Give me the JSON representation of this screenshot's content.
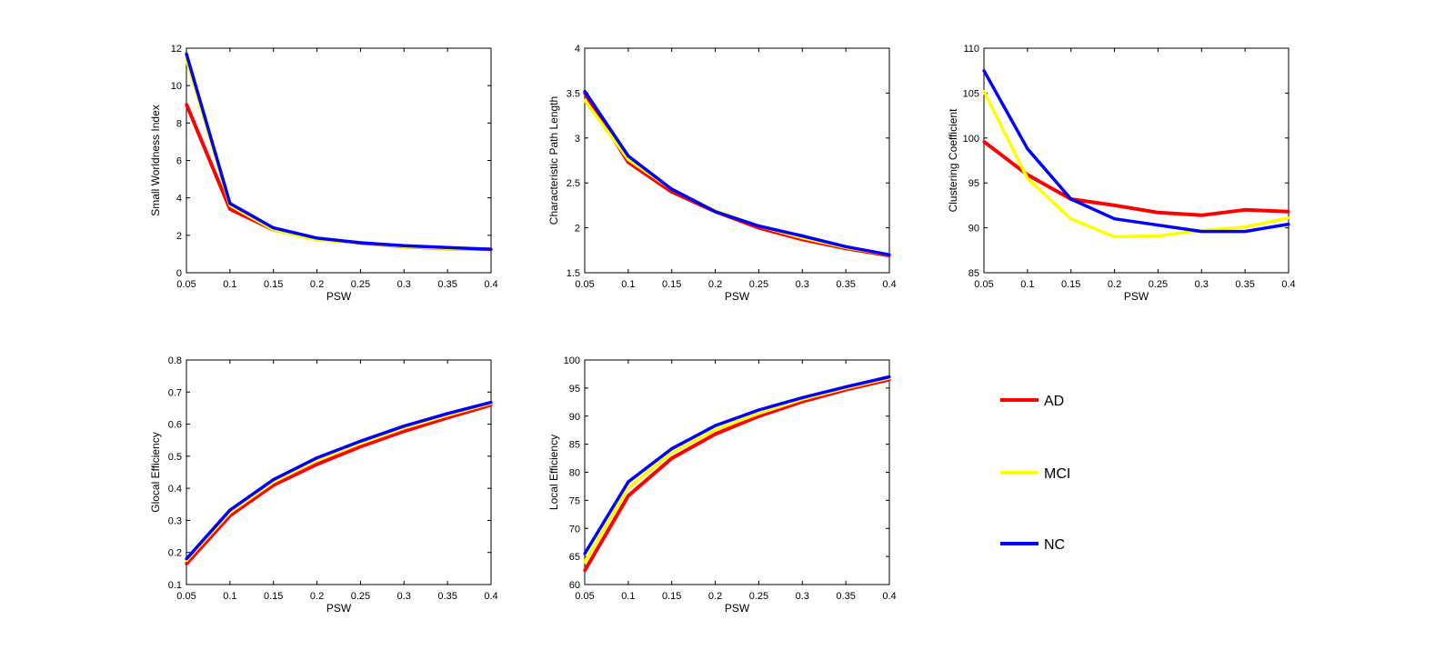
{
  "series_colors": {
    "AD": "#ff0000",
    "MCI": "#ffff00",
    "NC": "#0000ff"
  },
  "legend": [
    "AD",
    "MCI",
    "NC"
  ],
  "chart_data": [
    {
      "type": "line",
      "id": "small-worldness",
      "xlabel": "PSW",
      "ylabel": "Small Worldness Index",
      "x": [
        0.05,
        0.1,
        0.15,
        0.2,
        0.25,
        0.3,
        0.35,
        0.4
      ],
      "xticks": [
        "0.05",
        "0.1",
        "0.15",
        "0.2",
        "0.25",
        "0.3",
        "0.35",
        "0.4"
      ],
      "ylim": [
        0,
        12
      ],
      "yticks": [
        "0",
        "2",
        "4",
        "6",
        "8",
        "10",
        "12"
      ],
      "series": [
        {
          "name": "AD",
          "values": [
            9.0,
            3.4,
            2.3,
            1.8,
            1.6,
            1.4,
            1.3,
            1.25
          ]
        },
        {
          "name": "MCI",
          "values": [
            11.4,
            3.6,
            2.3,
            1.75,
            1.6,
            1.4,
            1.3,
            1.25
          ]
        },
        {
          "name": "NC",
          "values": [
            11.7,
            3.7,
            2.4,
            1.85,
            1.6,
            1.45,
            1.35,
            1.25
          ]
        }
      ]
    },
    {
      "type": "line",
      "id": "path-length",
      "xlabel": "PSW",
      "ylabel": "Characteristic Path Length",
      "x": [
        0.05,
        0.1,
        0.15,
        0.2,
        0.25,
        0.3,
        0.35,
        0.4
      ],
      "xticks": [
        "0.05",
        "0.1",
        "0.15",
        "0.2",
        "0.25",
        "0.3",
        "0.35",
        "0.4"
      ],
      "ylim": [
        1.5,
        4
      ],
      "yticks": [
        "1.5",
        "2",
        "2.5",
        "3",
        "3.5",
        "4"
      ],
      "series": [
        {
          "name": "AD",
          "values": [
            3.5,
            2.73,
            2.4,
            2.18,
            2.0,
            1.87,
            1.77,
            1.69
          ]
        },
        {
          "name": "MCI",
          "values": [
            3.42,
            2.76,
            2.43,
            2.19,
            2.02,
            1.89,
            1.78,
            1.7
          ]
        },
        {
          "name": "NC",
          "values": [
            3.52,
            2.8,
            2.43,
            2.18,
            2.02,
            1.91,
            1.79,
            1.7
          ]
        }
      ]
    },
    {
      "type": "line",
      "id": "clustering",
      "xlabel": "PSW",
      "ylabel": "Clustering Coefficient",
      "x": [
        0.05,
        0.1,
        0.15,
        0.2,
        0.25,
        0.3,
        0.35,
        0.4
      ],
      "xticks": [
        "0.05",
        "0.1",
        "0.15",
        "0.2",
        "0.25",
        "0.3",
        "0.35",
        "0.4"
      ],
      "ylim": [
        85,
        110
      ],
      "yticks": [
        "85",
        "90",
        "95",
        "100",
        "105",
        "110"
      ],
      "series": [
        {
          "name": "AD",
          "values": [
            99.6,
            95.9,
            93.2,
            92.5,
            91.7,
            91.4,
            92.0,
            91.8
          ]
        },
        {
          "name": "MCI",
          "values": [
            105.2,
            95.5,
            91.0,
            89.0,
            89.1,
            89.7,
            90.1,
            91.1
          ]
        },
        {
          "name": "NC",
          "values": [
            107.5,
            98.8,
            93.2,
            91.0,
            90.3,
            89.6,
            89.6,
            90.4
          ]
        }
      ]
    },
    {
      "type": "line",
      "id": "global-efficiency",
      "xlabel": "PSW",
      "ylabel": "Glocal Efficiency",
      "x": [
        0.05,
        0.1,
        0.15,
        0.2,
        0.25,
        0.3,
        0.35,
        0.4
      ],
      "xticks": [
        "0.05",
        "0.1",
        "0.15",
        "0.2",
        "0.25",
        "0.3",
        "0.35",
        "0.4"
      ],
      "ylim": [
        0.1,
        0.8
      ],
      "yticks": [
        "0.1",
        "0.2",
        "0.3",
        "0.4",
        "0.5",
        "0.6",
        "0.7",
        "0.8"
      ],
      "series": [
        {
          "name": "AD",
          "values": [
            0.165,
            0.315,
            0.41,
            0.475,
            0.53,
            0.578,
            0.62,
            0.66
          ]
        },
        {
          "name": "MCI",
          "values": [
            0.175,
            0.325,
            0.42,
            0.487,
            0.54,
            0.588,
            0.628,
            0.665
          ]
        },
        {
          "name": "NC",
          "values": [
            0.18,
            0.332,
            0.427,
            0.495,
            0.547,
            0.594,
            0.633,
            0.668
          ]
        }
      ]
    },
    {
      "type": "line",
      "id": "local-efficiency",
      "xlabel": "PSW",
      "ylabel": "Local Efficiency",
      "x": [
        0.05,
        0.1,
        0.15,
        0.2,
        0.25,
        0.3,
        0.35,
        0.4
      ],
      "xticks": [
        "0.05",
        "0.1",
        "0.15",
        "0.2",
        "0.25",
        "0.3",
        "0.35",
        "0.4"
      ],
      "ylim": [
        60,
        100
      ],
      "yticks": [
        "60",
        "65",
        "70",
        "75",
        "80",
        "85",
        "90",
        "95",
        "100"
      ],
      "series": [
        {
          "name": "AD",
          "values": [
            62.5,
            75.8,
            82.5,
            86.8,
            90.0,
            92.6,
            94.7,
            96.5
          ]
        },
        {
          "name": "MCI",
          "values": [
            64.0,
            77.2,
            83.5,
            87.6,
            90.5,
            93.0,
            95.0,
            96.8
          ]
        },
        {
          "name": "NC",
          "values": [
            65.5,
            78.3,
            84.2,
            88.3,
            91.1,
            93.3,
            95.2,
            97.0
          ]
        }
      ]
    }
  ]
}
